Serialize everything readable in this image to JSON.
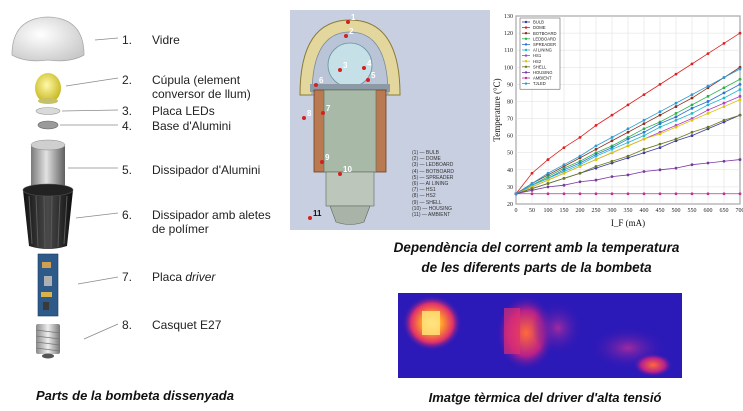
{
  "parts": [
    {
      "num": "1.",
      "label": "Vidre"
    },
    {
      "num": "2.",
      "label": "Cúpula (element conversor de llum)"
    },
    {
      "num": "3.",
      "label": "Placa LEDs"
    },
    {
      "num": "4.",
      "label": "Base d'Alumini"
    },
    {
      "num": "5.",
      "label": "Dissipador d'Alumini"
    },
    {
      "num": "6.",
      "label": "Dissipador amb aletes de polímer"
    },
    {
      "num": "7.",
      "label_prefix": "Placa ",
      "label_italic": "driver"
    },
    {
      "num": "8.",
      "label": "Casquet E27"
    }
  ],
  "captions": {
    "parts": "Parts de la bombeta dissenyada",
    "chart_line1": "Dependència del corrent amb la temperatura",
    "chart_line2": "de les diferents parts de la bombeta",
    "thermal": "Imatge tèrmica del driver d'alta tensió"
  },
  "section": {
    "points": [
      "1",
      "2",
      "3",
      "4",
      "5",
      "6",
      "7",
      "8",
      "9",
      "10",
      "11"
    ],
    "legend": [
      "(1) — BULB",
      "(2) — DOME",
      "(3) — LEDBOARD",
      "(4) — BOTBOARD",
      "(5) — SPREADER",
      "(6) — AI LINING",
      "(7) — HS1",
      "(8) — HS2",
      "(9) — SHELL",
      "(10) — HOUSING",
      "(11) — AMBIENT"
    ]
  },
  "chart_data": {
    "type": "line",
    "xlabel": "I_F (mA)",
    "ylabel": "Temperature (°C)",
    "xlim": [
      0,
      700
    ],
    "ylim": [
      20,
      130
    ],
    "x_ticks": [
      0,
      50,
      100,
      150,
      200,
      250,
      300,
      350,
      400,
      450,
      500,
      550,
      600,
      650,
      700
    ],
    "y_ticks": [
      20,
      30,
      40,
      50,
      60,
      70,
      80,
      90,
      100,
      110,
      120,
      130
    ],
    "x": [
      0,
      50,
      100,
      150,
      200,
      250,
      300,
      350,
      400,
      450,
      500,
      550,
      600,
      650,
      700
    ],
    "legend_position": "top-left",
    "series": [
      {
        "name": "BULB",
        "color": "#3a3aa0",
        "values": [
          26,
          29,
          32,
          35,
          38,
          41,
          44,
          47,
          50,
          53,
          57,
          60,
          64,
          68,
          72
        ]
      },
      {
        "name": "DOME",
        "color": "#e02020",
        "values": [
          26,
          38,
          46,
          53,
          59,
          66,
          72,
          78,
          84,
          90,
          96,
          102,
          108,
          114,
          120
        ]
      },
      {
        "name": "BOTBOARD",
        "color": "#8b2f1f",
        "values": [
          26,
          32,
          37,
          42,
          47,
          52,
          57,
          62,
          67,
          72,
          77,
          82,
          88,
          94,
          100
        ]
      },
      {
        "name": "LEDBOARD",
        "color": "#2db04a",
        "values": [
          26,
          31,
          36,
          41,
          45,
          50,
          54,
          59,
          64,
          68,
          73,
          78,
          83,
          88,
          93
        ]
      },
      {
        "name": "SPREADER",
        "color": "#2a6fd6",
        "values": [
          26,
          31,
          35,
          40,
          44,
          49,
          53,
          58,
          62,
          67,
          71,
          76,
          80,
          85,
          90
        ]
      },
      {
        "name": "Al LINING",
        "color": "#20b8c8",
        "values": [
          26,
          31,
          35,
          39,
          43,
          48,
          52,
          56,
          60,
          65,
          69,
          73,
          78,
          82,
          87
        ]
      },
      {
        "name": "HS1",
        "color": "#b23cc8",
        "values": [
          26,
          30,
          34,
          38,
          42,
          46,
          50,
          54,
          58,
          62,
          66,
          70,
          75,
          79,
          83
        ]
      },
      {
        "name": "HS2",
        "color": "#d8c800",
        "values": [
          26,
          30,
          34,
          38,
          42,
          46,
          50,
          54,
          58,
          61,
          65,
          69,
          73,
          77,
          81
        ]
      },
      {
        "name": "SHELL",
        "color": "#6b7a20",
        "values": [
          26,
          29,
          32,
          35,
          38,
          42,
          45,
          48,
          52,
          55,
          58,
          62,
          65,
          69,
          72
        ]
      },
      {
        "name": "HOUSING",
        "color": "#7a3aa0",
        "values": [
          26,
          28,
          30,
          31,
          33,
          34,
          36,
          37,
          39,
          40,
          41,
          43,
          44,
          45,
          46
        ]
      },
      {
        "name": "AMBIENT",
        "color": "#c03090",
        "values": [
          26,
          26,
          26,
          26,
          26,
          26,
          26,
          26,
          26,
          26,
          26,
          26,
          26,
          26,
          26
        ]
      },
      {
        "name": "TJLED",
        "color": "#2a9ad8",
        "values": [
          26,
          32,
          38,
          43,
          48,
          54,
          59,
          64,
          69,
          74,
          79,
          84,
          89,
          94,
          99
        ]
      }
    ]
  },
  "colors": {
    "accent": "#d23a2a",
    "thermal_bg": "#2b19b8"
  }
}
